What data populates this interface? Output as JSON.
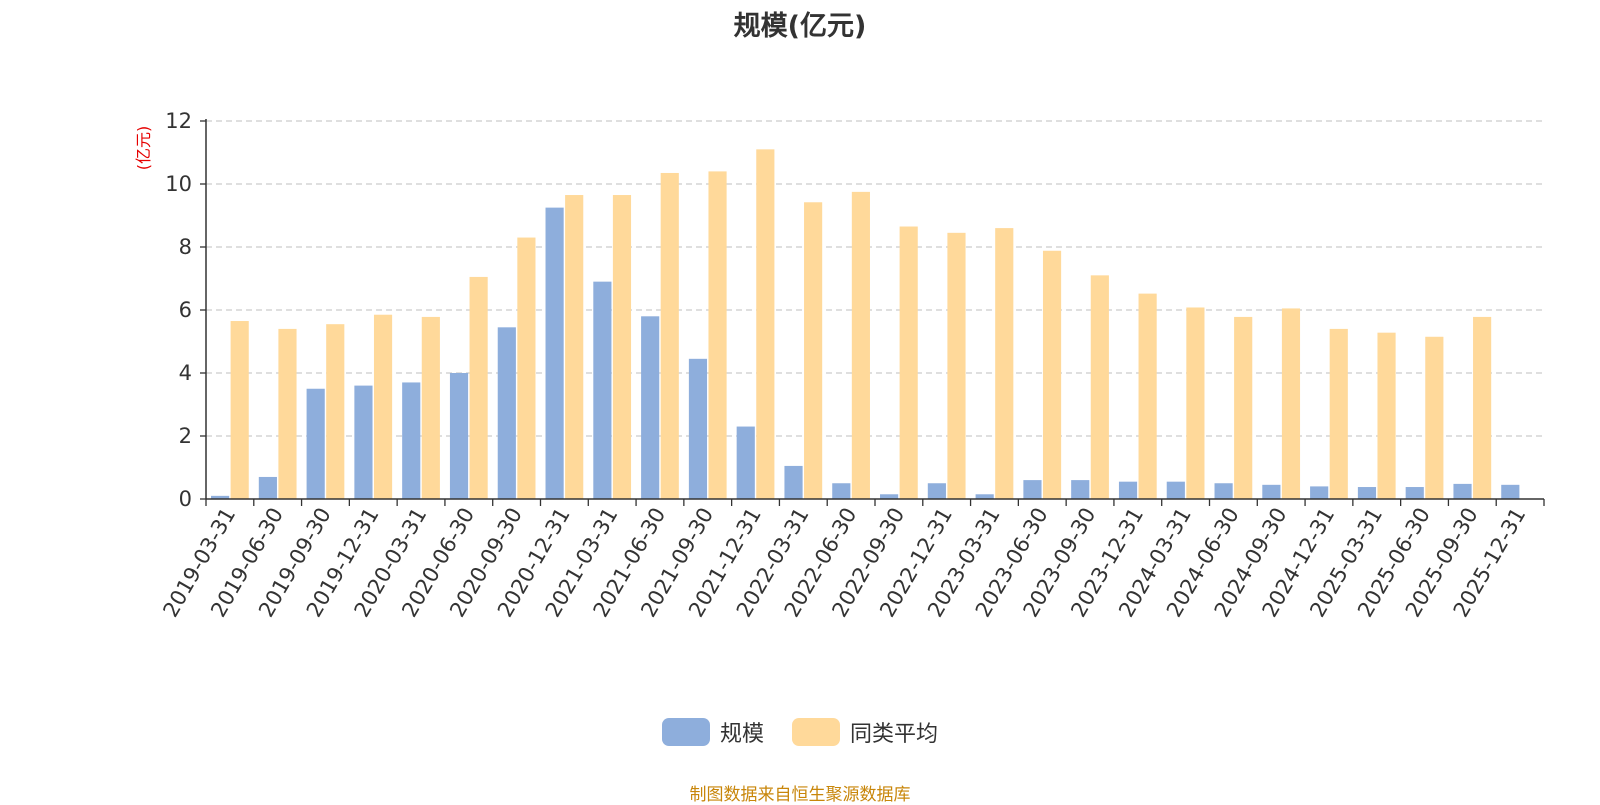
{
  "chart_data": {
    "type": "bar",
    "title": "规模(亿元)",
    "ylabel": "(亿元)",
    "xlabel": "",
    "ylim": [
      0,
      12
    ],
    "yticks": [
      0,
      2,
      4,
      6,
      8,
      10,
      12
    ],
    "grid": true,
    "legend_position": "bottom",
    "categories": [
      "2019-03-31",
      "2019-06-30",
      "2019-09-30",
      "2019-12-31",
      "2020-03-31",
      "2020-06-30",
      "2020-09-30",
      "2020-12-31",
      "2021-03-31",
      "2021-06-30",
      "2021-09-30",
      "2021-12-31",
      "2022-03-31",
      "2022-06-30",
      "2022-09-30",
      "2022-12-31",
      "2023-03-31",
      "2023-06-30",
      "2023-09-30",
      "2023-12-31",
      "2024-03-31",
      "2024-06-30",
      "2024-09-30",
      "2024-12-31",
      "2025-03-31",
      "2025-06-30",
      "2025-09-30",
      "2025-12-31"
    ],
    "series": [
      {
        "name": "规模",
        "color": "#8eaedc",
        "values": [
          0.1,
          0.7,
          3.5,
          3.6,
          3.7,
          4.0,
          5.45,
          9.25,
          6.9,
          5.8,
          4.45,
          2.3,
          1.05,
          0.5,
          0.15,
          0.5,
          0.15,
          0.6,
          0.6,
          0.55,
          0.55,
          0.5,
          0.45,
          0.4,
          0.38,
          0.38,
          0.48,
          0.45
        ]
      },
      {
        "name": "同类平均",
        "color": "#ffd99a",
        "values": [
          5.65,
          5.4,
          5.55,
          5.85,
          5.78,
          7.05,
          8.3,
          9.65,
          9.65,
          10.35,
          10.4,
          11.1,
          9.42,
          9.75,
          8.65,
          8.45,
          8.6,
          7.88,
          7.1,
          6.52,
          6.08,
          5.78,
          6.05,
          5.4,
          5.28,
          5.15,
          5.78,
          null
        ]
      }
    ]
  },
  "source_note": "制图数据来自恒生聚源数据库"
}
